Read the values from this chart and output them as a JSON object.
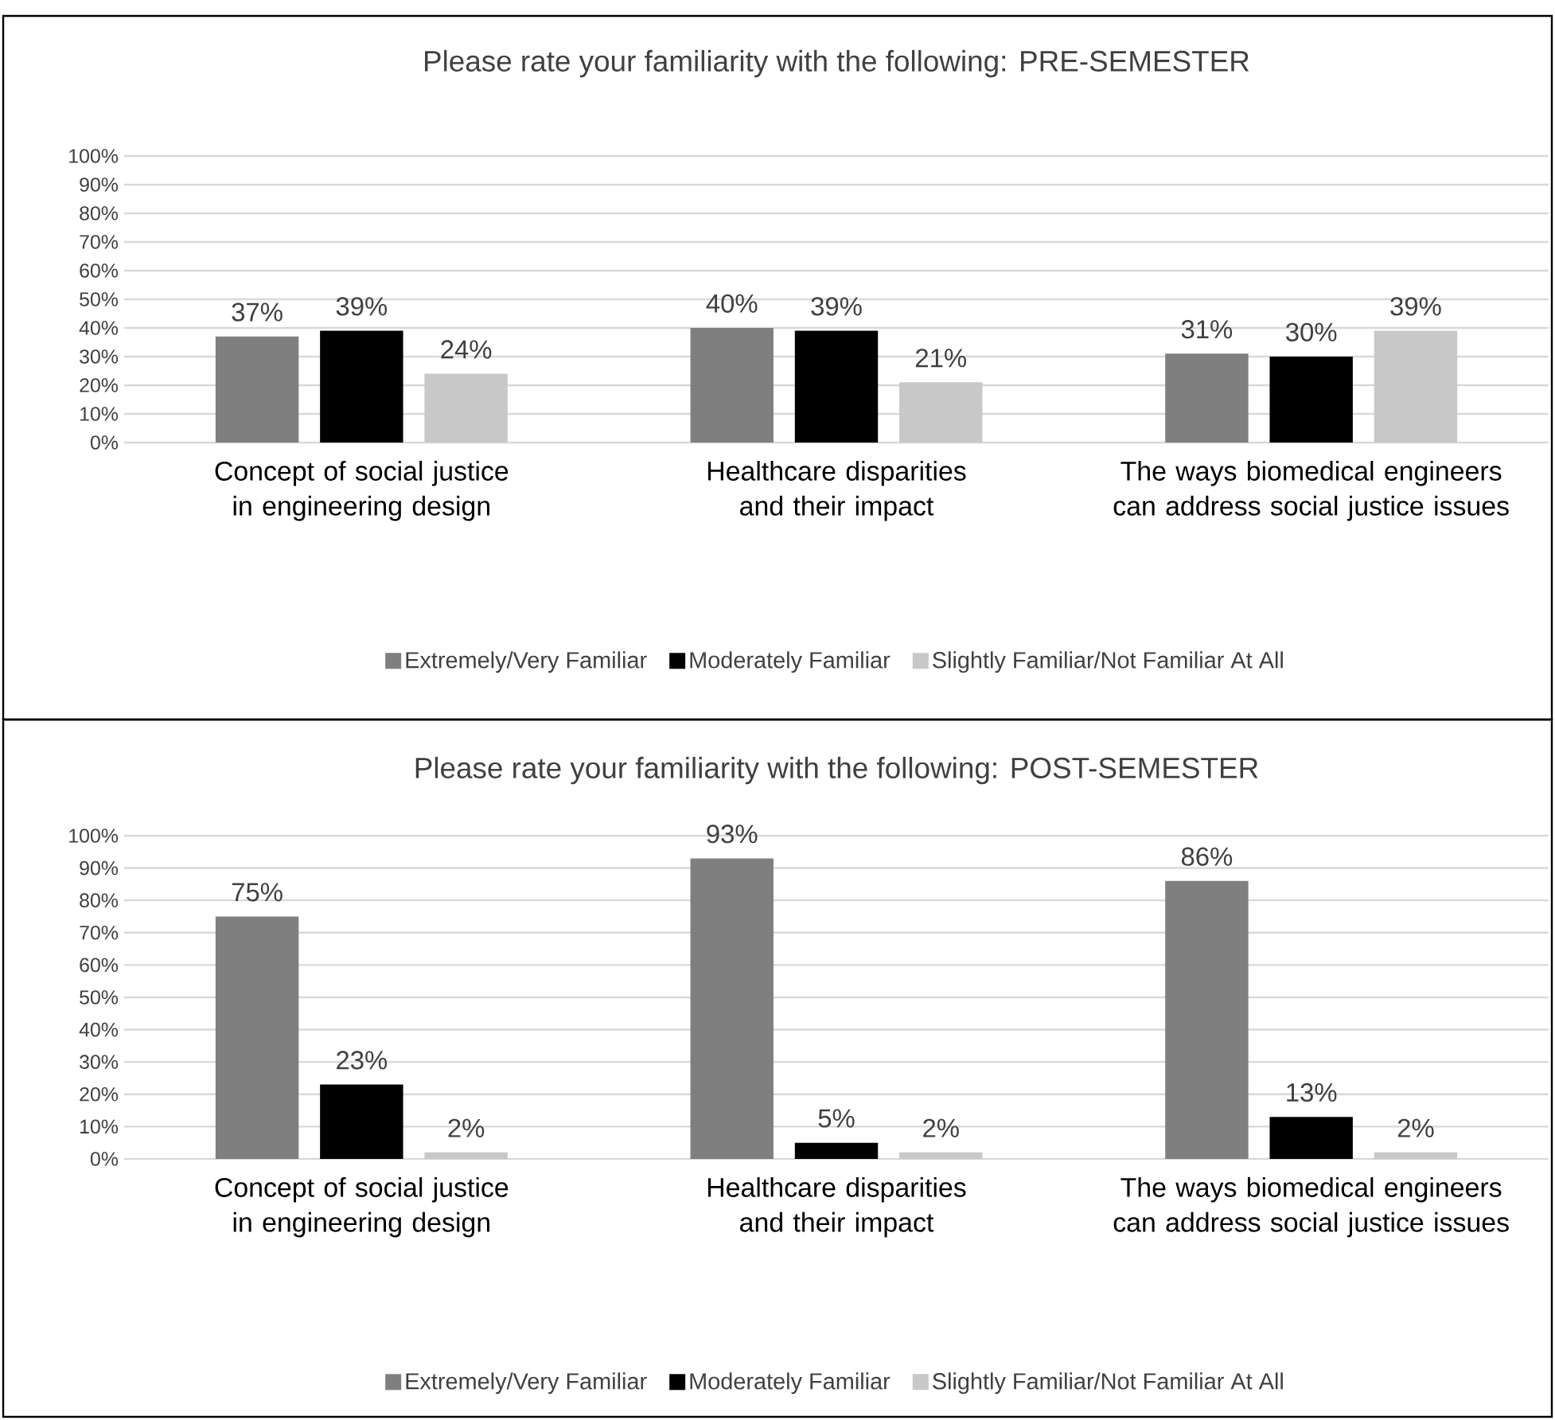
{
  "chart_data": [
    {
      "type": "bar",
      "title": "Please rate your familiarity with the following: PRE-SEMESTER",
      "categories": [
        "Concept of social justice in engineering design",
        "Healthcare disparities and their impact",
        "The ways biomedical engineers can address social justice issues"
      ],
      "series": [
        {
          "name": "Extremely/Very Familiar",
          "color": "#7f7f7f",
          "values": [
            37,
            40,
            31
          ],
          "value_labels": [
            "37%",
            "40%",
            "31%"
          ]
        },
        {
          "name": "Moderately Familiar",
          "color": "#000000",
          "values": [
            39,
            39,
            30
          ],
          "value_labels": [
            "39%",
            "39%",
            "30%"
          ]
        },
        {
          "name": "Slightly Familiar/Not Familiar At All",
          "color": "#c8c8c8",
          "values": [
            24,
            21,
            39
          ],
          "value_labels": [
            "24%",
            "21%",
            "39%"
          ]
        }
      ],
      "ylim": [
        0,
        100
      ],
      "yticks": [
        {
          "value": 0,
          "label": "0%"
        },
        {
          "value": 10,
          "label": "10%"
        },
        {
          "value": 20,
          "label": "20%"
        },
        {
          "value": 30,
          "label": "30%"
        },
        {
          "value": 40,
          "label": "40%"
        },
        {
          "value": 50,
          "label": "50%"
        },
        {
          "value": 60,
          "label": "60%"
        },
        {
          "value": 70,
          "label": "70%"
        },
        {
          "value": 80,
          "label": "80%"
        },
        {
          "value": 90,
          "label": "90%"
        },
        {
          "value": 100,
          "label": "100%"
        }
      ],
      "grid": "y",
      "legend": "bottom"
    },
    {
      "type": "bar",
      "title": "Please rate your familiarity with the following: POST-SEMESTER",
      "categories": [
        "Concept of social justice in engineering design",
        "Healthcare disparities and their impact",
        "The ways biomedical engineers can address social justice issues"
      ],
      "series": [
        {
          "name": "Extremely/Very Familiar",
          "color": "#7f7f7f",
          "values": [
            75,
            93,
            86
          ],
          "value_labels": [
            "75%",
            "93%",
            "86%"
          ]
        },
        {
          "name": "Moderately Familiar",
          "color": "#000000",
          "values": [
            23,
            5,
            13
          ],
          "value_labels": [
            "23%",
            "5%",
            "13%"
          ]
        },
        {
          "name": "Slightly Familiar/Not Familiar At All",
          "color": "#c8c8c8",
          "values": [
            2,
            2,
            2
          ],
          "value_labels": [
            "2%",
            "2%",
            "2%"
          ]
        }
      ],
      "ylim": [
        0,
        100
      ],
      "yticks": [
        {
          "value": 0,
          "label": "0%"
        },
        {
          "value": 10,
          "label": "10%"
        },
        {
          "value": 20,
          "label": "20%"
        },
        {
          "value": 30,
          "label": "30%"
        },
        {
          "value": 40,
          "label": "40%"
        },
        {
          "value": 50,
          "label": "50%"
        },
        {
          "value": 60,
          "label": "60%"
        },
        {
          "value": 70,
          "label": "70%"
        },
        {
          "value": 80,
          "label": "80%"
        },
        {
          "value": 90,
          "label": "90%"
        },
        {
          "value": 100,
          "label": "100%"
        }
      ],
      "grid": "y",
      "legend": "bottom"
    }
  ]
}
